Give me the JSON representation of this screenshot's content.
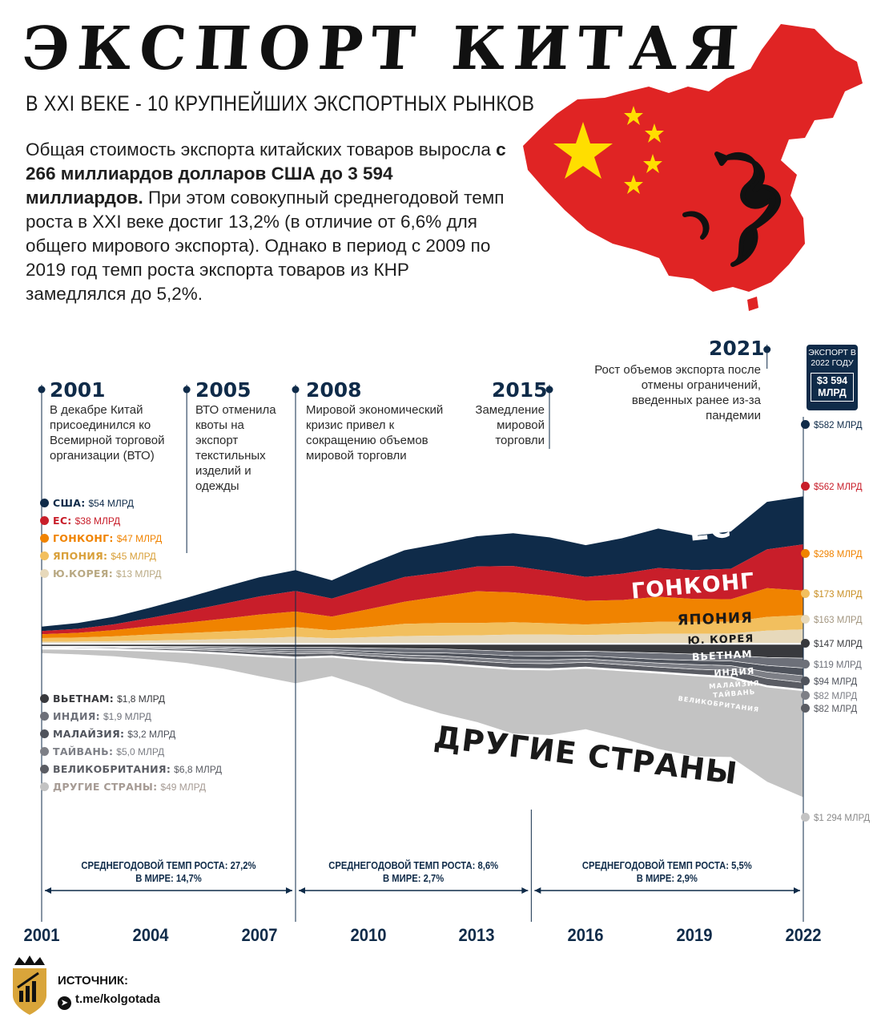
{
  "header": {
    "title": "ЭКСПОРТ КИТАЯ",
    "subtitle": "В XXI ВЕКЕ - 10 КРУПНЕЙШИХ ЭКСПОРТНЫХ РЫНКОВ",
    "desc_part1": "Общая стоимость экспорта китайских товаров выросла ",
    "desc_bold": "с 266 миллиардов долларов США до 3 594 миллиардов.",
    "desc_part2": " При этом совокупный среднегодовой темп роста в XXI веке достиг 13,2% (в отличие от 6,6% для общего мирового экспорта). Однако в период с 2009 по 2019 год темп роста экспорта товаров из КНР замедлялся до 5,2%."
  },
  "events": [
    {
      "year": "2001",
      "text": "В декабре Китай присоединился ко Всемирной торговой организации (ВТО)"
    },
    {
      "year": "2005",
      "text": "ВТО отменила квоты на экспорт текстильных изделий и одежды"
    },
    {
      "year": "2008",
      "text": "Мировой экономический кризис привел к сокращению объемов мировой торговли"
    },
    {
      "year": "2015",
      "text": "Замедление мировой торговли"
    },
    {
      "year": "2021",
      "text": "Рост объемов экспорта после отмены ограничений, введенных ранее из-за пандемии"
    }
  ],
  "export_box": {
    "label": "ЭКСПОРТ В 2022 ГОДУ",
    "value": "$3 594 МЛРД"
  },
  "colors": {
    "usa": "#0f2b49",
    "eu": "#c81e2a",
    "hk": "#f08300",
    "japan": "#f2bf5e",
    "korea": "#e7d9bb",
    "vietnam": "#38393d",
    "india": "#6d7079",
    "malaysia": "#4f535c",
    "taiwan": "#7d7f86",
    "uk": "#5a5c63",
    "other": "#c3c3c3",
    "map": "#e02424",
    "star": "#ffde00"
  },
  "chart_data": {
    "type": "area",
    "x": [
      2001,
      2002,
      2003,
      2004,
      2005,
      2006,
      2007,
      2008,
      2009,
      2010,
      2011,
      2012,
      2013,
      2014,
      2015,
      2016,
      2017,
      2018,
      2019,
      2020,
      2021,
      2022
    ],
    "series": [
      {
        "name": "США",
        "label_2001": "США:",
        "value_2001": "$54 МЛРД",
        "value_2022": "$582 МЛРД",
        "color": "usa",
        "values": [
          54,
          70,
          92,
          125,
          163,
          203,
          233,
          252,
          221,
          283,
          325,
          352,
          368,
          397,
          410,
          385,
          430,
          478,
          418,
          452,
          577,
          582
        ]
      },
      {
        "name": "ЕС",
        "label_2001": "ЕС:",
        "value_2001": "$38 МЛРД",
        "value_2022": "$562 МЛРД",
        "color": "eu",
        "values": [
          38,
          48,
          70,
          100,
          140,
          180,
          220,
          250,
          220,
          260,
          300,
          290,
          300,
          320,
          300,
          290,
          320,
          350,
          350,
          370,
          470,
          562
        ]
      },
      {
        "name": "ГОНКОНГ",
        "label_2001": "ГОНКОНГ:",
        "value_2001": "$47 МЛРД",
        "value_2022": "$298 МЛРД",
        "color": "hk",
        "values": [
          47,
          58,
          76,
          101,
          125,
          155,
          185,
          190,
          166,
          218,
          268,
          323,
          385,
          363,
          333,
          288,
          279,
          303,
          279,
          273,
          349,
          298
        ]
      },
      {
        "name": "ЯПОНИЯ",
        "label_2001": "ЯПОНИЯ:",
        "value_2001": "$45 МЛРД",
        "value_2022": "$173 МЛРД",
        "color": "japan",
        "values": [
          45,
          48,
          59,
          74,
          84,
          92,
          102,
          116,
          98,
          121,
          148,
          152,
          150,
          150,
          136,
          129,
          137,
          147,
          143,
          143,
          166,
          173
        ]
      },
      {
        "name": "Ю. КОРЕЯ",
        "label_2001": "Ю.КОРЕЯ:",
        "value_2001": "$13 МЛРД",
        "value_2022": "$163 МЛРД",
        "color": "korea",
        "values": [
          13,
          16,
          20,
          28,
          35,
          45,
          56,
          74,
          54,
          69,
          83,
          88,
          91,
          100,
          101,
          94,
          103,
          109,
          111,
          113,
          149,
          163
        ]
      },
      {
        "name": "ВЬЕТНАМ",
        "label_2001": "ВЬЕТНАМ:",
        "value_2001": "$1,8 МЛРД",
        "value_2022": "$147 МЛРД",
        "color": "vietnam",
        "values": [
          1.8,
          2.1,
          3.2,
          4.3,
          5.6,
          7.5,
          12,
          15,
          16,
          23,
          29,
          34,
          49,
          64,
          66,
          61,
          72,
          84,
          98,
          114,
          138,
          147
        ]
      },
      {
        "name": "ИНДИЯ",
        "label_2001": "ИНДИЯ:",
        "value_2001": "$1,9 МЛРД",
        "value_2022": "$119 МЛРД",
        "color": "india",
        "values": [
          1.9,
          2.7,
          3.3,
          5.9,
          8.9,
          15,
          24,
          32,
          30,
          41,
          51,
          48,
          48,
          54,
          58,
          58,
          68,
          77,
          75,
          67,
          97,
          119
        ]
      },
      {
        "name": "МАЛАЙЗИЯ",
        "label_2001": "МАЛАЙЗИЯ:",
        "value_2001": "$3,2 МЛРД",
        "value_2022": "$94 МЛРД",
        "color": "malaysia",
        "values": [
          3.2,
          5,
          6,
          8,
          11,
          14,
          18,
          21,
          20,
          24,
          28,
          37,
          46,
          46,
          44,
          38,
          42,
          45,
          52,
          56,
          79,
          94
        ]
      },
      {
        "name": "ТАЙВАНЬ",
        "label_2001": "ТАЙВАНЬ:",
        "value_2001": "$5,0 МЛРД",
        "value_2022": "$82 МЛРД",
        "color": "taiwan",
        "values": [
          5,
          6.6,
          9,
          13,
          16,
          21,
          23,
          26,
          21,
          30,
          35,
          37,
          41,
          46,
          45,
          40,
          44,
          49,
          55,
          60,
          78,
          82
        ]
      },
      {
        "name": "ВЕЛИКОБРИТАНИЯ",
        "label_2001": "ВЕЛИКОБРИТАНИЯ:",
        "value_2001": "$6,8 МЛРД",
        "value_2022": "$82 МЛРД",
        "color": "uk",
        "values": [
          6.8,
          8,
          11,
          15,
          19,
          24,
          32,
          36,
          31,
          39,
          44,
          46,
          51,
          57,
          60,
          56,
          57,
          57,
          62,
          73,
          87,
          82
        ]
      },
      {
        "name": "ДРУГИЕ СТРАНЫ",
        "label_2001": "ДРУГИЕ СТРАНЫ:",
        "value_2001": "$49 МЛРД",
        "value_2022": "$1 294 МЛРД",
        "color": "other",
        "values": [
          49,
          60,
          75,
          100,
          130,
          175,
          240,
          305,
          230,
          330,
          480,
          600,
          670,
          780,
          790,
          740,
          820,
          920,
          980,
          960,
          1150,
          1294
        ]
      }
    ],
    "stack_labels": [
      "США",
      "ЕС",
      "ГОНКОНГ",
      "ЯПОНИЯ",
      "Ю. КОРЕЯ",
      "ВЬЕТНАМ",
      "ИНДИЯ",
      "МАЛАЙЗИЯ",
      "ТАЙВАНЬ",
      "ВЕЛИКОБРИТАНИЯ",
      "ДРУГИЕ СТРАНЫ"
    ],
    "x_ticks": [
      "2001",
      "2004",
      "2007",
      "2010",
      "2013",
      "2016",
      "2019",
      "2022"
    ],
    "cagr": [
      {
        "line1": "СРЕДНЕГОДОВОЙ ТЕМП РОСТА: 27,2%",
        "line2": "В МИРЕ: 14,7%",
        "from": 2001,
        "to": 2008
      },
      {
        "line1": "СРЕДНЕГОДОВОЙ ТЕМП РОСТА: 8,6%",
        "line2": "В МИРЕ: 2,7%",
        "from": 2008,
        "to": 2014.5
      },
      {
        "line1": "СРЕДНЕГОДОВОЙ ТЕМП РОСТА: 5,5%",
        "line2": "В МИРЕ: 2,9%",
        "from": 2014.5,
        "to": 2022
      }
    ]
  },
  "source": {
    "label": "ИСТОЧНИК:",
    "handle": "t.me/kolgotada"
  }
}
